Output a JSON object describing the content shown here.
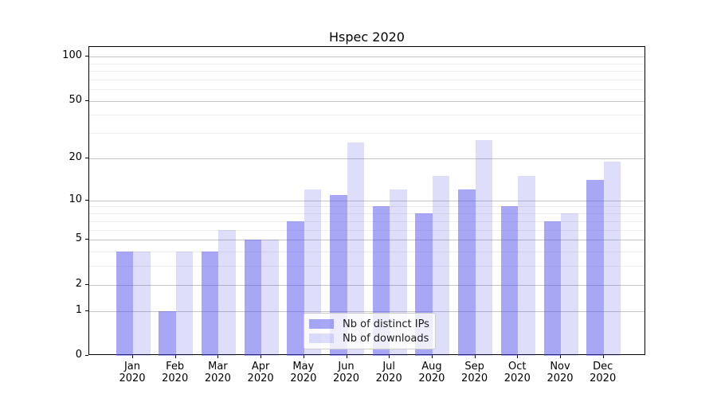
{
  "chart_data": {
    "type": "bar",
    "title": "Hspec 2020",
    "categories": [
      "Jan",
      "Feb",
      "Mar",
      "Apr",
      "May",
      "Jun",
      "Jul",
      "Aug",
      "Sep",
      "Oct",
      "Nov",
      "Dec"
    ],
    "x_tick_year": "2020",
    "series": [
      {
        "name": "Nb of distinct IPs",
        "color": "rgba(80,80,235,0.5)",
        "values": [
          4,
          1,
          4,
          5,
          7,
          11,
          9,
          8,
          12,
          9,
          7,
          14
        ]
      },
      {
        "name": "Nb of downloads",
        "color": "rgba(80,80,235,0.19)",
        "values": [
          4,
          4,
          6,
          5,
          12,
          26,
          12,
          15,
          27,
          15,
          8,
          19
        ]
      }
    ],
    "yscale": "log10(1+v)",
    "ylim": [
      0,
      116
    ],
    "y_major_ticks": [
      0,
      1,
      2,
      5,
      10,
      20,
      50,
      100
    ],
    "y_minor_gridlines": [
      3,
      4,
      6,
      7,
      8,
      9,
      30,
      40,
      60,
      70,
      80,
      90
    ],
    "grid": true,
    "legend_position": "lower center",
    "colors": {
      "major_grid": "#c4c4c4",
      "minor_grid": "#ededed",
      "axis": "#000000",
      "text": "#000000",
      "legend_border": "#cccccc"
    }
  }
}
